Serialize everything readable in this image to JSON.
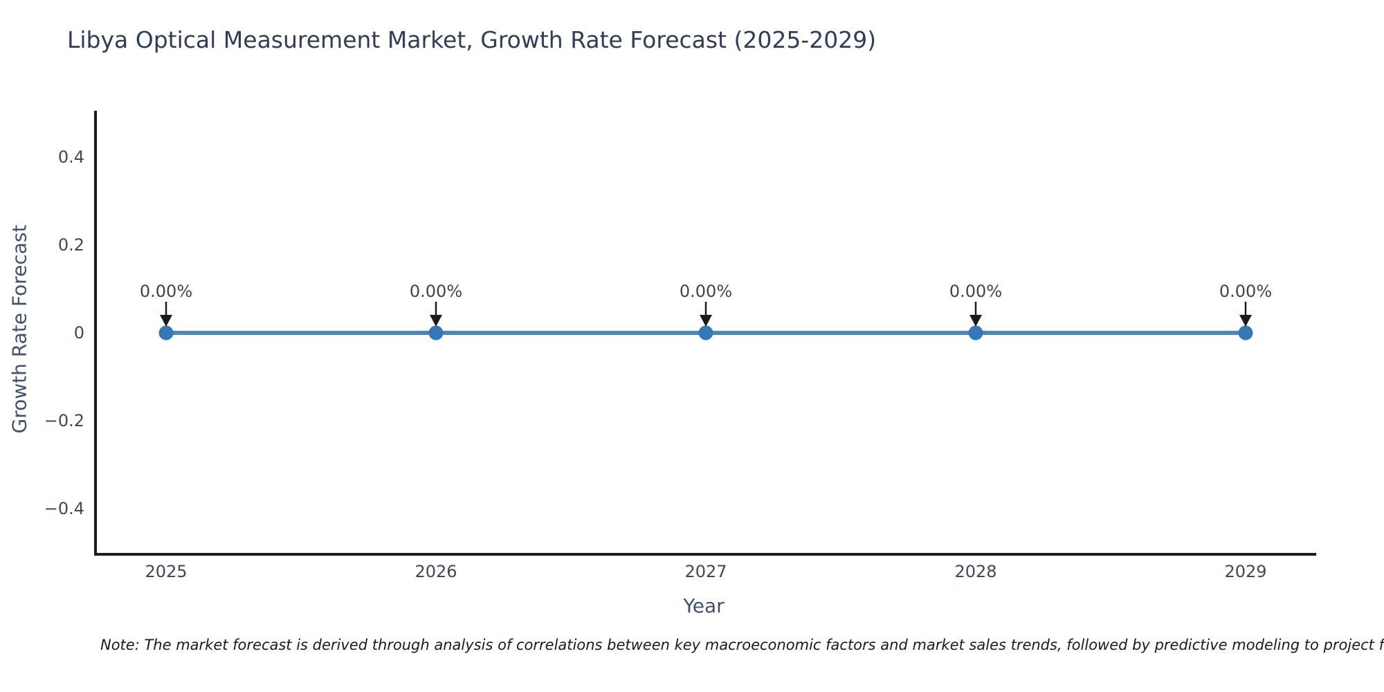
{
  "chart_data": {
    "type": "line",
    "title": "Libya Optical Measurement Market, Growth Rate Forecast (2025-2029)",
    "xlabel": "Year",
    "ylabel": "Growth Rate Forecast",
    "categories": [
      "2025",
      "2026",
      "2027",
      "2028",
      "2029"
    ],
    "series": [
      {
        "name": "Growth Rate Forecast",
        "values": [
          0,
          0,
          0,
          0,
          0
        ]
      }
    ],
    "point_labels": [
      "0.00%",
      "0.00%",
      "0.00%",
      "0.00%",
      "0.00%"
    ],
    "ytick_values": [
      0.4,
      0.2,
      0,
      -0.2,
      -0.4
    ],
    "ytick_labels": [
      "0.4",
      "0.2",
      "0",
      "−0.2",
      "−0.4"
    ],
    "ylim": [
      -0.5,
      0.5
    ],
    "grid": false,
    "legend": "none",
    "line_color": "#4e86b8",
    "marker_color": "#3478b7",
    "axis_color": "#1d1d1d",
    "arrow_color": "#1a1a1a"
  },
  "note": "Note: The market forecast is derived through analysis of correlations between key macroeconomic factors and market sales trends, followed by predictive modeling to project future sales."
}
